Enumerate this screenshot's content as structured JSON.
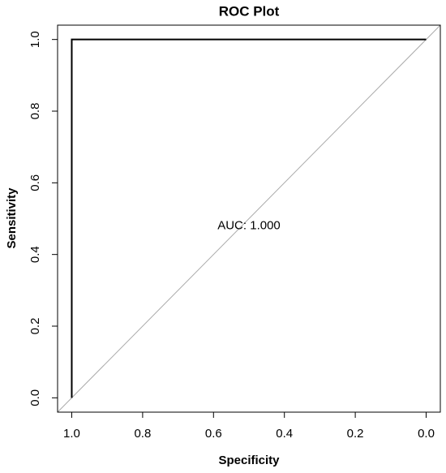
{
  "chart_data": {
    "type": "line",
    "title": "ROC Plot",
    "x_label": "Specificity",
    "y_label": "Sensitivity",
    "x": [
      1,
      1,
      0
    ],
    "series": [
      {
        "color": "#000000",
        "values": [
          0,
          1,
          1
        ]
      }
    ],
    "annotation": "AUC: 1.000",
    "xlim": [
      1.04,
      -0.04
    ],
    "ylim": [
      -0.04,
      1.04
    ],
    "xticks": [
      {
        "value": 1,
        "label": "1.0"
      },
      {
        "value": 0.8,
        "label": "0.8"
      },
      {
        "value": 0.6,
        "label": "0.6"
      },
      {
        "value": 0.4,
        "label": "0.4"
      },
      {
        "value": 0.2,
        "label": "0.2"
      },
      {
        "value": 0,
        "label": "0.0"
      }
    ],
    "yticks": [
      {
        "value": 0,
        "label": "0.0"
      },
      {
        "value": 0.2,
        "label": "0.2"
      },
      {
        "value": 0.4,
        "label": "0.4"
      },
      {
        "value": 0.6,
        "label": "0.6"
      },
      {
        "value": 0.8,
        "label": "0.8"
      },
      {
        "value": 1,
        "label": "1.0"
      }
    ],
    "grid": false
  }
}
